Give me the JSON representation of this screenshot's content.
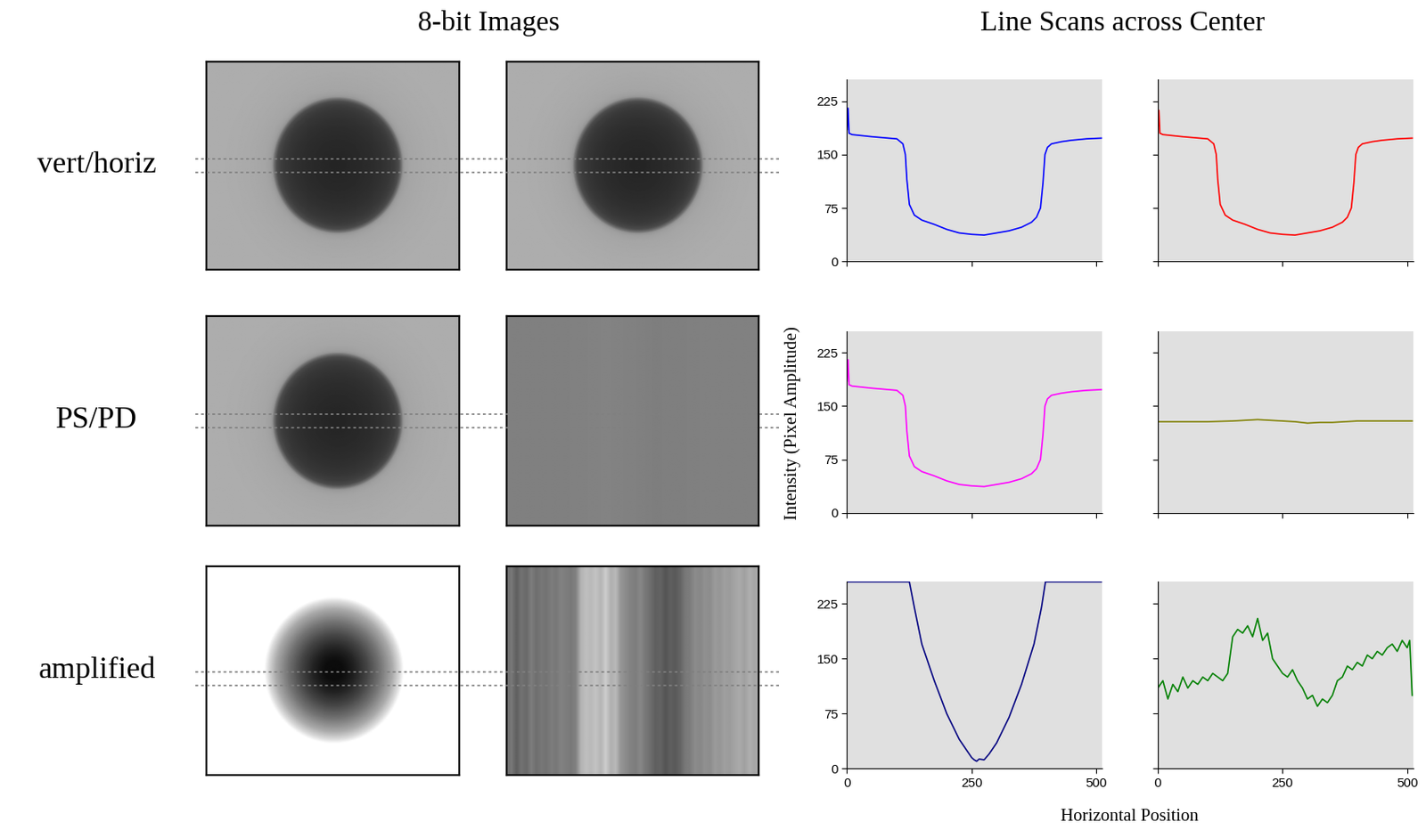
{
  "figure": {
    "headers": [
      "8-bit Images",
      "Line Scans across Center"
    ],
    "row_labels": [
      "vert/horiz",
      "PS/PD",
      "amplified"
    ],
    "ylabel": "Intensity (Pixel Amplitude)",
    "xlabel": "Horizontal Position"
  },
  "chart_data": [
    {
      "type": "line",
      "color": "#0000ff",
      "xlim": [
        0,
        512
      ],
      "ylim": [
        0,
        255
      ],
      "xticks": [
        0,
        250,
        500
      ],
      "yticks": [
        0,
        75,
        150,
        225
      ],
      "tick_labels": "y",
      "x": [
        0,
        2,
        4,
        10,
        50,
        100,
        112,
        117,
        120,
        125,
        135,
        150,
        175,
        200,
        225,
        250,
        275,
        300,
        325,
        350,
        370,
        380,
        388,
        393,
        397,
        402,
        410,
        430,
        450,
        480,
        510
      ],
      "values": [
        185,
        215,
        180,
        178,
        175,
        172,
        165,
        150,
        115,
        80,
        65,
        58,
        52,
        45,
        40,
        38,
        37,
        40,
        43,
        48,
        55,
        62,
        75,
        110,
        150,
        160,
        165,
        168,
        170,
        172,
        173
      ]
    },
    {
      "type": "line",
      "color": "#ff0000",
      "xlim": [
        0,
        512
      ],
      "ylim": [
        0,
        255
      ],
      "xticks": [
        0,
        250,
        500
      ],
      "yticks": [
        0,
        75,
        150,
        225
      ],
      "tick_labels": false,
      "x": [
        0,
        2,
        4,
        10,
        50,
        100,
        112,
        117,
        120,
        125,
        135,
        150,
        175,
        200,
        225,
        250,
        275,
        300,
        325,
        350,
        370,
        380,
        388,
        393,
        397,
        402,
        410,
        430,
        450,
        480,
        510
      ],
      "values": [
        185,
        212,
        180,
        178,
        175,
        172,
        165,
        150,
        115,
        80,
        65,
        58,
        52,
        45,
        40,
        38,
        37,
        40,
        43,
        48,
        55,
        62,
        75,
        110,
        150,
        160,
        165,
        168,
        170,
        172,
        173
      ]
    },
    {
      "type": "line",
      "color": "#ff00ff",
      "xlim": [
        0,
        512
      ],
      "ylim": [
        0,
        255
      ],
      "xticks": [
        0,
        250,
        500
      ],
      "yticks": [
        0,
        75,
        150,
        225
      ],
      "tick_labels": "y",
      "x": [
        0,
        2,
        4,
        10,
        50,
        100,
        112,
        117,
        120,
        125,
        135,
        150,
        175,
        200,
        225,
        250,
        275,
        300,
        325,
        350,
        370,
        380,
        388,
        393,
        397,
        402,
        410,
        430,
        450,
        480,
        510
      ],
      "values": [
        185,
        215,
        180,
        178,
        175,
        172,
        165,
        150,
        115,
        80,
        65,
        58,
        52,
        45,
        40,
        38,
        37,
        40,
        43,
        48,
        55,
        62,
        75,
        110,
        150,
        160,
        165,
        168,
        170,
        172,
        173
      ]
    },
    {
      "type": "line",
      "color": "#808000",
      "xlim": [
        0,
        512
      ],
      "ylim": [
        0,
        255
      ],
      "xticks": [
        0,
        250,
        500
      ],
      "yticks": [
        0,
        75,
        150,
        225
      ],
      "tick_labels": false,
      "x": [
        0,
        50,
        100,
        150,
        200,
        225,
        250,
        275,
        300,
        325,
        350,
        400,
        450,
        510
      ],
      "values": [
        128,
        128,
        128,
        129,
        131,
        130,
        129,
        128,
        126,
        127,
        127,
        129,
        129,
        129
      ]
    },
    {
      "type": "line",
      "color": "#000080",
      "xlim": [
        0,
        512
      ],
      "ylim": [
        0,
        255
      ],
      "xticks": [
        0,
        250,
        500
      ],
      "yticks": [
        0,
        75,
        150,
        225
      ],
      "x": [
        0,
        125,
        135,
        150,
        175,
        200,
        225,
        240,
        250,
        255,
        260,
        265,
        275,
        285,
        300,
        325,
        350,
        375,
        390,
        398,
        450,
        510
      ],
      "values": [
        255,
        255,
        220,
        170,
        120,
        75,
        40,
        25,
        15,
        12,
        10,
        13,
        12,
        20,
        35,
        70,
        115,
        170,
        220,
        255,
        255,
        255
      ]
    },
    {
      "type": "line",
      "color": "#008000",
      "xlim": [
        0,
        512
      ],
      "ylim": [
        0,
        255
      ],
      "xticks": [
        0,
        250,
        500
      ],
      "yticks": [
        0,
        75,
        150,
        225
      ],
      "tick_labels": "x",
      "x": [
        0,
        10,
        20,
        30,
        40,
        50,
        60,
        70,
        80,
        90,
        100,
        110,
        120,
        130,
        140,
        150,
        160,
        170,
        180,
        190,
        200,
        210,
        220,
        230,
        240,
        250,
        260,
        270,
        280,
        290,
        300,
        310,
        320,
        330,
        340,
        350,
        360,
        370,
        380,
        390,
        400,
        410,
        420,
        430,
        440,
        450,
        460,
        470,
        480,
        490,
        500,
        505,
        510
      ],
      "values": [
        110,
        120,
        95,
        115,
        105,
        125,
        110,
        120,
        115,
        125,
        120,
        130,
        125,
        120,
        130,
        180,
        190,
        185,
        195,
        180,
        205,
        175,
        185,
        150,
        140,
        130,
        125,
        135,
        120,
        110,
        95,
        100,
        85,
        95,
        90,
        100,
        120,
        125,
        140,
        135,
        145,
        140,
        155,
        150,
        160,
        155,
        165,
        170,
        160,
        175,
        165,
        175,
        100
      ]
    }
  ]
}
